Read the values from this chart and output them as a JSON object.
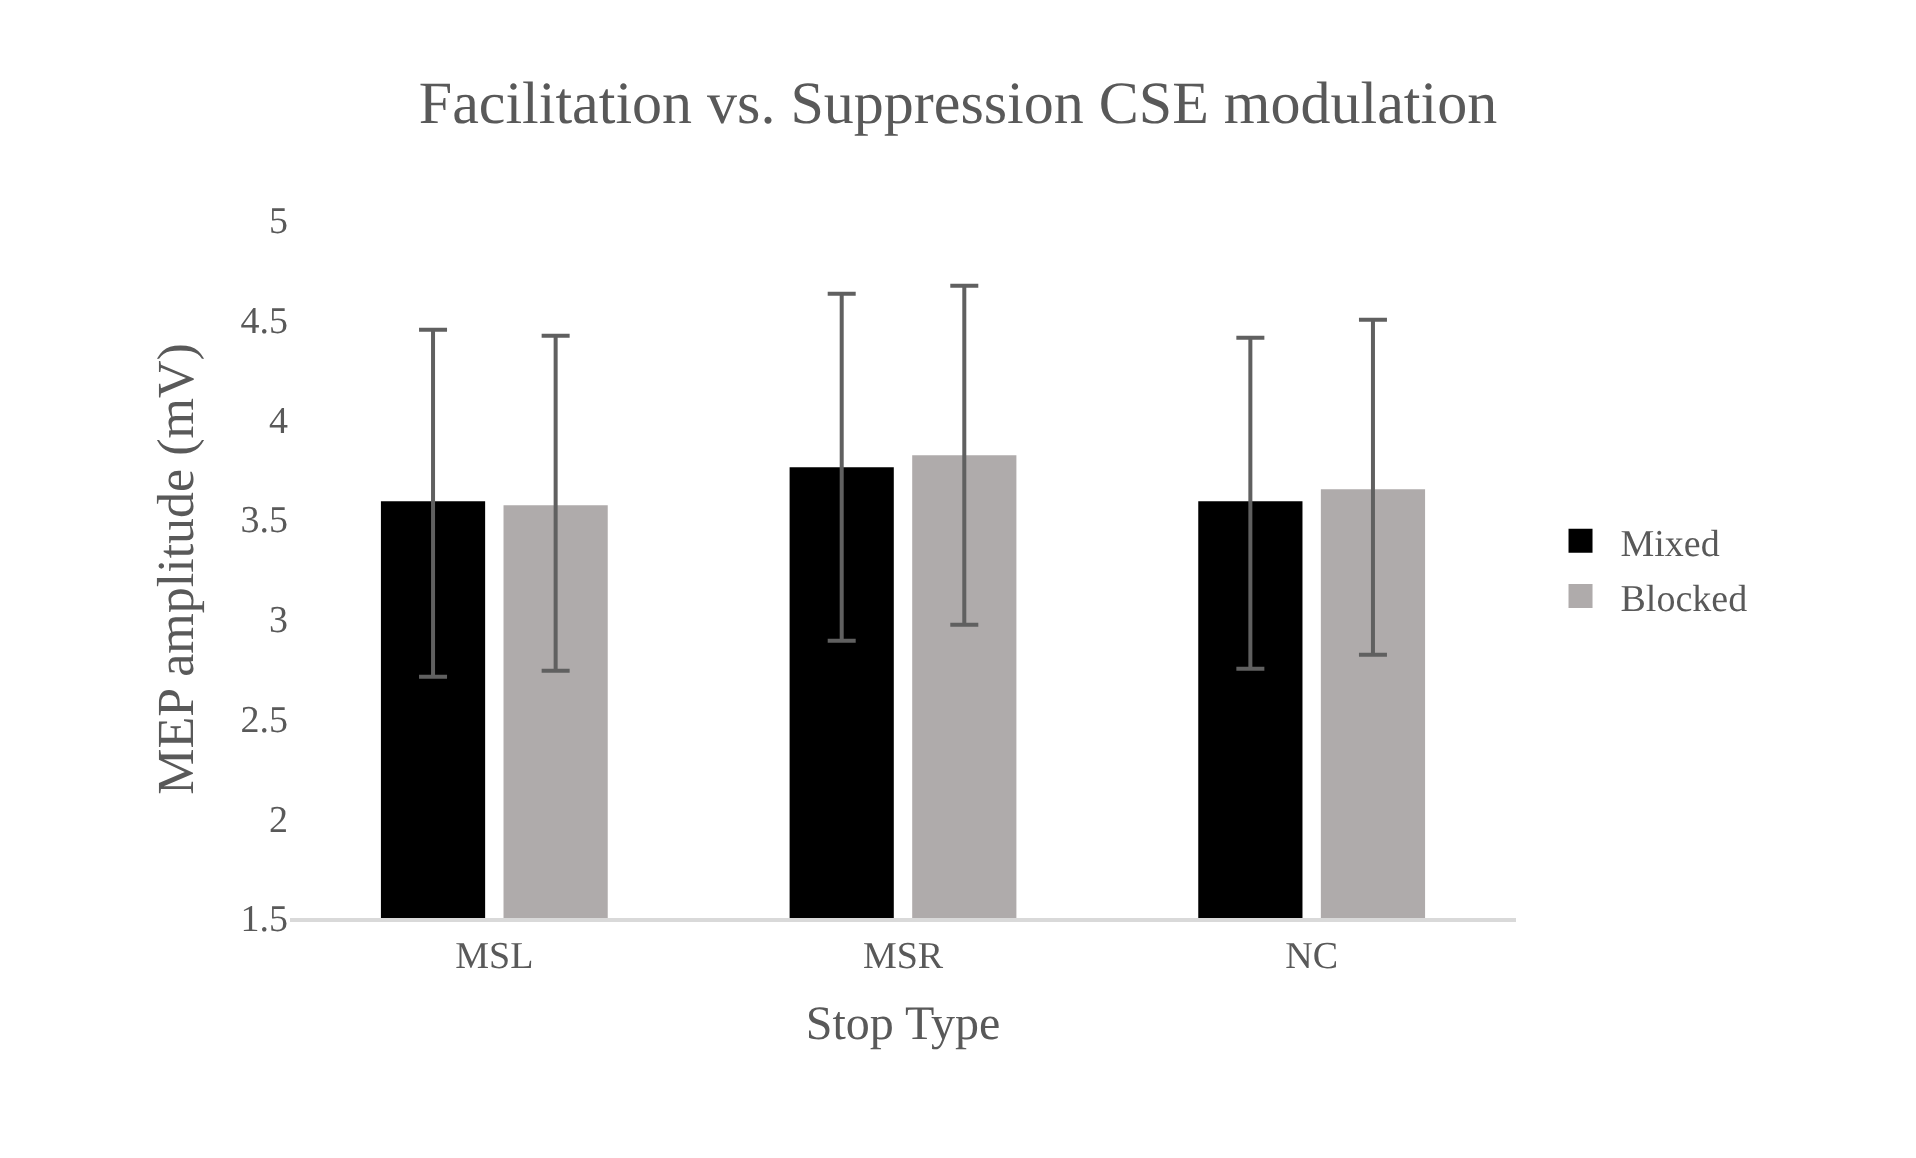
{
  "chart_data": {
    "type": "bar",
    "title": "Facilitation vs. Suppression CSE modulation",
    "xlabel": "Stop Type",
    "ylabel": "MEP amplitude (mV)",
    "categories": [
      "MSL",
      "MSR",
      "NC"
    ],
    "series": [
      {
        "name": "Mixed",
        "color": "#000000",
        "values": [
          3.59,
          3.76,
          3.59
        ],
        "errors": [
          [
            2.71,
            4.45
          ],
          [
            2.89,
            4.63
          ],
          [
            2.75,
            4.41
          ]
        ]
      },
      {
        "name": "Blocked",
        "color": "#afabab",
        "values": [
          3.57,
          3.82,
          3.65
        ],
        "errors": [
          [
            2.74,
            4.42
          ],
          [
            2.97,
            4.67
          ],
          [
            2.82,
            4.5
          ]
        ]
      }
    ],
    "ylim": [
      1.5,
      5
    ],
    "yticks": [
      1.5,
      2,
      2.5,
      3,
      3.5,
      4,
      4.5,
      5
    ],
    "grid": false,
    "legend": "right"
  }
}
